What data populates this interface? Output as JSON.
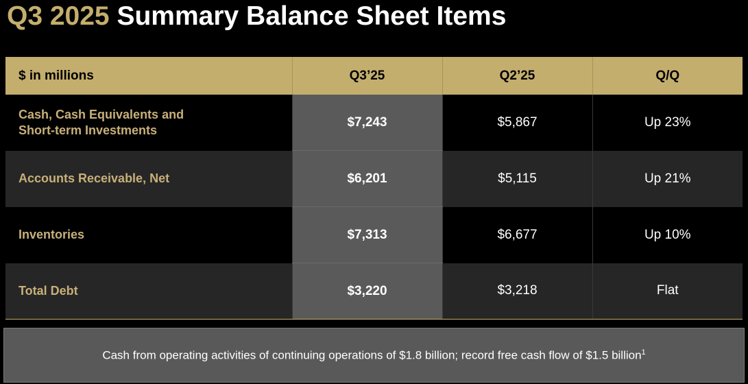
{
  "header": {
    "title_highlight": "Q3 2025",
    "title": "Summary Balance Sheet Items"
  },
  "table": {
    "columns": [
      "$ in millions",
      "Q3’25",
      "Q2’25",
      "Q/Q"
    ],
    "rows": [
      [
        "Cash, Cash Equivalents and Short-term Investments",
        "$7,243",
        "$5,867",
        "Up 23%"
      ],
      [
        "Accounts Receivable, Net",
        "$6,201",
        "$5,115",
        "Up 21%"
      ],
      [
        "Inventories",
        "$7,313",
        "$6,677",
        "Up 10%"
      ],
      [
        "Total Debt",
        "$3,220",
        "$3,218",
        "Flat"
      ]
    ]
  },
  "note": {
    "text": "Cash from operating activities of continuing operations of $1.8 billion; record free cash flow of $1.5 billion",
    "superscript": "1"
  }
}
